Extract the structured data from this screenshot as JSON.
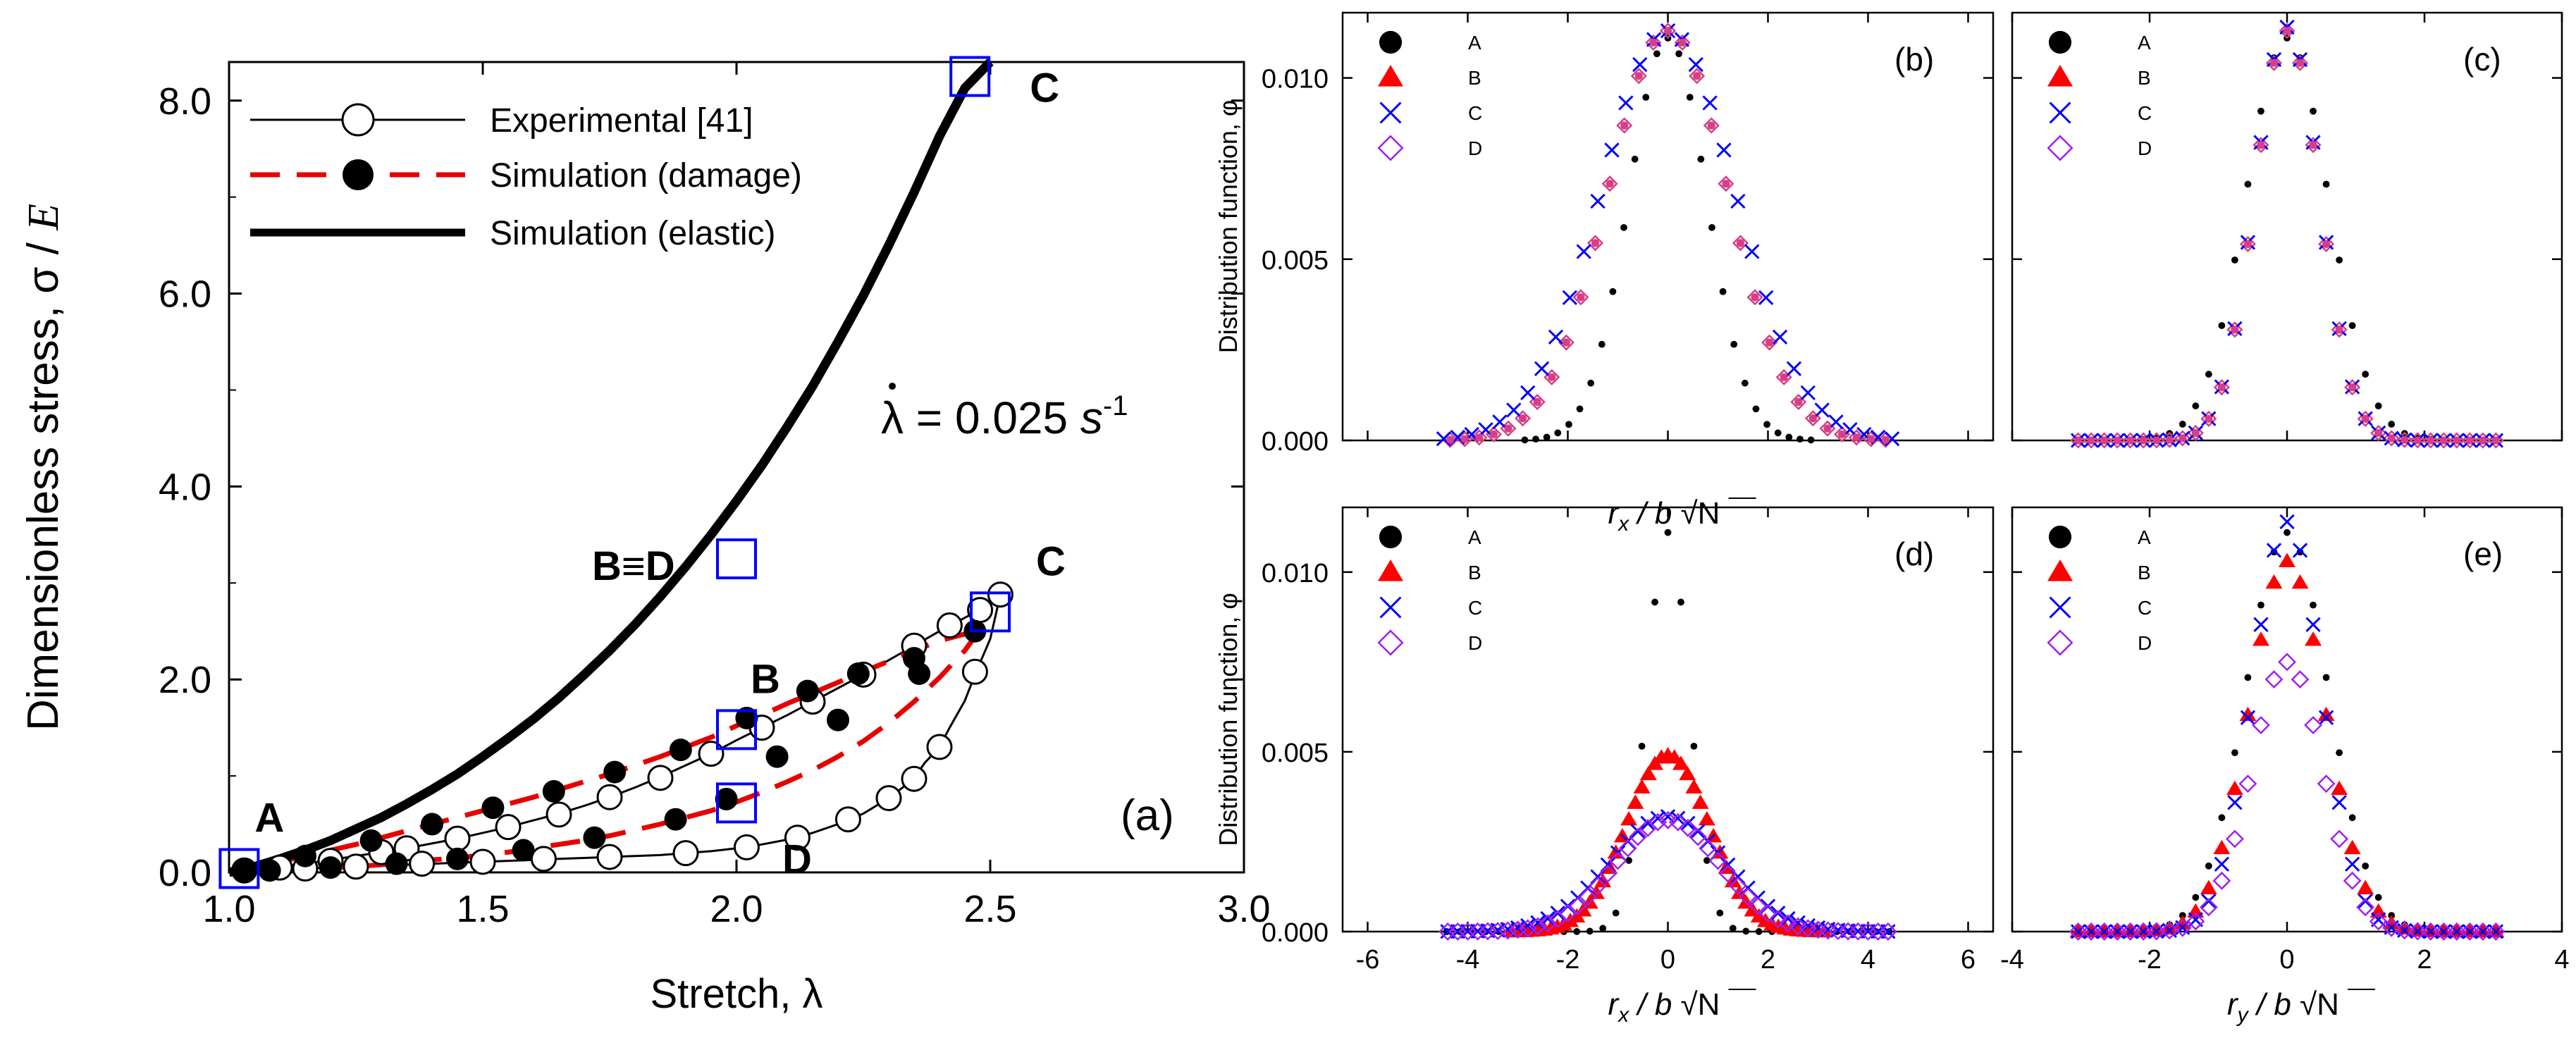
{
  "chart_data": [
    {
      "panel": "a",
      "type": "line",
      "title": "",
      "panel_label": "(a)",
      "xlabel": "Stretch, λ",
      "ylabel_prefix": "Dimensionless stress, σ / ",
      "ylabel_var": "E",
      "xlim": [
        1.0,
        3.0
      ],
      "ylim": [
        0.0,
        8.4
      ],
      "xticks": [
        1.0,
        1.5,
        2.0,
        2.5,
        3.0
      ],
      "xtick_labels": [
        "1.0",
        "1.5",
        "2.0",
        "2.5",
        "3.0"
      ],
      "yticks": [
        0,
        2,
        4,
        6,
        8
      ],
      "ytick_labels": [
        "0.0",
        "2.0",
        "4.0",
        "6.0",
        "8.0"
      ],
      "rate_annotation": {
        "lhs": "λ",
        "eq": " = 0.025 ",
        "unit": "s",
        "exp": "-1"
      },
      "legend_position": "top-left",
      "legend": [
        {
          "label": "Experimental [41]",
          "marker": "open-circle",
          "line": "thin-solid",
          "color": "#000000"
        },
        {
          "label": "Simulation (damage)",
          "marker": "filled-circle",
          "line": "dashed",
          "color": "#e60000"
        },
        {
          "label": "Simulation (elastic)",
          "marker": "none",
          "line": "thick-solid",
          "color": "#000000"
        }
      ],
      "series": [
        {
          "name": "Experimental [41] loading",
          "x": [
            1.02,
            1.06,
            1.1,
            1.15,
            1.2,
            1.25,
            1.3,
            1.35,
            1.4,
            1.45,
            1.5,
            1.55,
            1.6,
            1.65,
            1.7,
            1.75,
            1.8,
            1.85,
            1.9,
            1.95,
            2.0,
            2.05,
            2.1,
            2.15,
            2.2,
            2.25,
            2.3,
            2.35,
            2.4,
            2.45,
            2.5,
            2.52
          ],
          "y": [
            0.02,
            0.04,
            0.06,
            0.09,
            0.13,
            0.17,
            0.21,
            0.25,
            0.3,
            0.35,
            0.41,
            0.47,
            0.54,
            0.61,
            0.69,
            0.78,
            0.88,
            0.99,
            1.11,
            1.23,
            1.37,
            1.5,
            1.63,
            1.77,
            1.91,
            2.05,
            2.2,
            2.35,
            2.5,
            2.64,
            2.78,
            2.88
          ]
        },
        {
          "name": "Experimental [41] unloading",
          "x": [
            2.52,
            2.5,
            2.47,
            2.45,
            2.42,
            2.4,
            2.37,
            2.35,
            2.3,
            2.25,
            2.2,
            2.15,
            2.1,
            2.05,
            2.0,
            1.95,
            1.9,
            1.85,
            1.8,
            1.75,
            1.7,
            1.65,
            1.6,
            1.55,
            1.5,
            1.45,
            1.4,
            1.35,
            1.3,
            1.25,
            1.2,
            1.15,
            1.1,
            1.06,
            1.02
          ],
          "y": [
            2.88,
            2.42,
            2.05,
            1.78,
            1.5,
            1.3,
            1.13,
            0.97,
            0.77,
            0.61,
            0.5,
            0.41,
            0.34,
            0.29,
            0.25,
            0.22,
            0.2,
            0.18,
            0.17,
            0.16,
            0.15,
            0.14,
            0.13,
            0.12,
            0.11,
            0.1,
            0.09,
            0.08,
            0.07,
            0.06,
            0.05,
            0.04,
            0.03,
            0.02,
            0.02
          ]
        },
        {
          "name": "Experimental [41] markers",
          "x": [
            1.03,
            1.1,
            1.2,
            1.3,
            1.35,
            1.45,
            1.55,
            1.65,
            1.75,
            1.85,
            1.95,
            2.05,
            2.15,
            2.25,
            2.35,
            2.42,
            2.48,
            2.52,
            2.47,
            2.4,
            2.35,
            2.3,
            2.22,
            2.12,
            2.02,
            1.9,
            1.75,
            1.62,
            1.5,
            1.38,
            1.25,
            1.15
          ],
          "y": [
            0.02,
            0.05,
            0.12,
            0.21,
            0.25,
            0.35,
            0.47,
            0.6,
            0.78,
            0.98,
            1.23,
            1.5,
            1.77,
            2.05,
            2.35,
            2.56,
            2.72,
            2.88,
            2.08,
            1.3,
            0.97,
            0.77,
            0.55,
            0.36,
            0.26,
            0.2,
            0.16,
            0.14,
            0.11,
            0.09,
            0.06,
            0.04
          ]
        },
        {
          "name": "Simulation (damage) loading",
          "x": [
            1.02,
            1.06,
            1.1,
            1.15,
            1.2,
            1.25,
            1.3,
            1.35,
            1.4,
            1.45,
            1.5,
            1.55,
            1.6,
            1.65,
            1.7,
            1.75,
            1.8,
            1.85,
            1.9,
            1.95,
            2.0,
            2.05,
            2.1,
            2.15,
            2.2,
            2.25,
            2.3,
            2.35,
            2.4,
            2.45,
            2.48
          ],
          "y": [
            0.02,
            0.06,
            0.11,
            0.17,
            0.23,
            0.29,
            0.36,
            0.43,
            0.5,
            0.57,
            0.64,
            0.71,
            0.78,
            0.86,
            0.94,
            1.02,
            1.11,
            1.2,
            1.3,
            1.4,
            1.52,
            1.63,
            1.75,
            1.86,
            1.97,
            2.08,
            2.19,
            2.3,
            2.4,
            2.47,
            2.52
          ]
        },
        {
          "name": "Simulation (damage) unloading",
          "x": [
            2.48,
            2.45,
            2.4,
            2.35,
            2.3,
            2.25,
            2.2,
            2.15,
            2.1,
            2.05,
            2.0,
            1.95,
            1.9,
            1.85,
            1.8,
            1.75,
            1.7,
            1.65,
            1.6,
            1.55,
            1.5,
            1.45,
            1.4,
            1.35,
            1.3,
            1.25,
            1.2,
            1.15,
            1.1,
            1.06,
            1.02
          ],
          "y": [
            2.52,
            2.3,
            2.02,
            1.77,
            1.55,
            1.36,
            1.2,
            1.06,
            0.94,
            0.83,
            0.73,
            0.64,
            0.57,
            0.5,
            0.44,
            0.38,
            0.33,
            0.29,
            0.25,
            0.21,
            0.18,
            0.15,
            0.13,
            0.1,
            0.08,
            0.06,
            0.05,
            0.03,
            0.02,
            0.02,
            0.02
          ]
        },
        {
          "name": "Simulation (damage) markers",
          "x": [
            1.03,
            1.15,
            1.28,
            1.4,
            1.52,
            1.64,
            1.76,
            1.89,
            2.02,
            2.14,
            2.24,
            2.35,
            2.47,
            2.36,
            2.2,
            2.08,
            1.98,
            1.88,
            1.72,
            1.58,
            1.45,
            1.33,
            1.2,
            1.08
          ],
          "y": [
            0.02,
            0.17,
            0.33,
            0.5,
            0.67,
            0.84,
            1.04,
            1.27,
            1.6,
            1.88,
            2.06,
            2.22,
            2.5,
            2.06,
            1.58,
            1.2,
            0.76,
            0.55,
            0.36,
            0.23,
            0.14,
            0.09,
            0.05,
            0.02
          ]
        },
        {
          "name": "Simulation (elastic)",
          "x": [
            1.0,
            1.05,
            1.1,
            1.15,
            1.2,
            1.25,
            1.3,
            1.35,
            1.4,
            1.45,
            1.5,
            1.55,
            1.6,
            1.65,
            1.7,
            1.75,
            1.8,
            1.85,
            1.9,
            1.95,
            2.0,
            2.05,
            2.1,
            2.15,
            2.2,
            2.25,
            2.3,
            2.35,
            2.4,
            2.45,
            2.5
          ],
          "y": [
            0.0,
            0.06,
            0.14,
            0.23,
            0.33,
            0.45,
            0.57,
            0.71,
            0.86,
            1.02,
            1.2,
            1.39,
            1.59,
            1.81,
            2.05,
            2.3,
            2.57,
            2.86,
            3.17,
            3.5,
            3.85,
            4.22,
            4.62,
            5.04,
            5.5,
            5.98,
            6.5,
            7.05,
            7.63,
            8.13,
            8.4
          ]
        }
      ],
      "markers_points": [
        {
          "label": "A",
          "x": 1.02,
          "y": 0.04
        },
        {
          "label": "B",
          "x": 2.0,
          "y": 1.48
        },
        {
          "label": "B≡D",
          "x": 2.0,
          "y": 3.25
        },
        {
          "label": "C",
          "x": 2.5,
          "y": 2.7
        },
        {
          "label": "C",
          "x": 2.46,
          "y": 8.25
        },
        {
          "label": "D",
          "x": 2.0,
          "y": 0.72
        }
      ]
    },
    {
      "panel": "b",
      "type": "scatter",
      "panel_label": "(b)",
      "ylabel": "Distribution function, φ",
      "xlabel_var": "r_x / b √N",
      "xlim": [
        -6.5,
        6.5
      ],
      "ylim": [
        0.0,
        0.0118
      ],
      "yticks": [
        0.0,
        0.005,
        0.01
      ],
      "ytick_labels": [
        "0.000",
        "0.005",
        "0.010"
      ],
      "legend": [
        {
          "label": "A",
          "marker": "filled-circle",
          "color": "#000000"
        },
        {
          "label": "B",
          "marker": "triangle",
          "color": "#ff0000"
        },
        {
          "label": "C",
          "marker": "cross",
          "color": "#0000ff"
        },
        {
          "label": "D",
          "marker": "open-diamond",
          "color": "#a020f0"
        }
      ],
      "series": [
        {
          "name": "A",
          "sigma": 0.78,
          "peak": 0.0111,
          "xmax": 3.0,
          "step": 0.22
        },
        {
          "name": "B",
          "sigma": 1.2,
          "peak": 0.0113,
          "xmax": 4.5,
          "step": 0.29
        },
        {
          "name": "C",
          "sigma": 1.35,
          "peak": 0.0113,
          "xmax": 4.5,
          "step": 0.28
        },
        {
          "name": "D",
          "sigma": 1.2,
          "peak": 0.0113,
          "xmax": 4.5,
          "step": 0.29
        }
      ]
    },
    {
      "panel": "c",
      "type": "scatter",
      "panel_label": "(c)",
      "xlim": [
        -4,
        4
      ],
      "ylim": [
        0.0,
        0.0118
      ],
      "legend": [
        {
          "label": "A",
          "marker": "filled-circle",
          "color": "#000000"
        },
        {
          "label": "B",
          "marker": "triangle",
          "color": "#ff0000"
        },
        {
          "label": "C",
          "marker": "cross",
          "color": "#0000ff"
        },
        {
          "label": "D",
          "marker": "open-diamond",
          "color": "#a020f0"
        }
      ],
      "series": [
        {
          "name": "A",
          "sigma": 0.6,
          "peak": 0.0111,
          "xmax": 3.2,
          "step": 0.19
        },
        {
          "name": "B",
          "sigma": 0.47,
          "peak": 0.0113,
          "xmax": 3.2,
          "step": 0.19
        },
        {
          "name": "C",
          "sigma": 0.47,
          "peak": 0.0114,
          "xmax": 3.2,
          "step": 0.19
        },
        {
          "name": "D",
          "sigma": 0.47,
          "peak": 0.0113,
          "xmax": 3.2,
          "step": 0.19
        }
      ]
    },
    {
      "panel": "d",
      "type": "scatter",
      "panel_label": "(d)",
      "ylabel": "Distribution function, φ",
      "xlabel_var": "r_x / b √N",
      "xlim": [
        -6.5,
        6.5
      ],
      "ylim": [
        0.0,
        0.0118
      ],
      "xticks": [
        -6,
        -4,
        -2,
        0,
        2,
        4,
        6
      ],
      "xtick_labels": [
        "-6",
        "-4",
        "-2",
        "0",
        "2",
        "4",
        "6"
      ],
      "yticks": [
        0.0,
        0.005,
        0.01
      ],
      "ytick_labels": [
        "0.000",
        "0.005",
        "0.010"
      ],
      "legend": [
        {
          "label": "A",
          "marker": "filled-circle",
          "color": "#000000"
        },
        {
          "label": "B",
          "marker": "triangle",
          "color": "#ff0000"
        },
        {
          "label": "C",
          "marker": "cross",
          "color": "#0000ff"
        },
        {
          "label": "D",
          "marker": "open-diamond",
          "color": "#a020f0"
        }
      ],
      "series": [
        {
          "name": "A",
          "sigma": 0.42,
          "peak": 0.0111,
          "xmax": 4.5,
          "step": 0.26
        },
        {
          "name": "B",
          "sigma": 0.82,
          "peak": 0.0049,
          "xmax": 3.2,
          "step": 0.13
        },
        {
          "name": "C",
          "sigma": 1.15,
          "peak": 0.0032,
          "xmax": 4.5,
          "step": 0.2
        },
        {
          "name": "D",
          "sigma": 1.05,
          "peak": 0.0031,
          "xmax": 4.5,
          "step": 0.2
        }
      ]
    },
    {
      "panel": "e",
      "type": "scatter",
      "panel_label": "(e)",
      "xlabel_var": "r_y / b √N",
      "xlim": [
        -4,
        4
      ],
      "ylim": [
        0.0,
        0.0118
      ],
      "xticks": [
        -4,
        -2,
        0,
        2,
        4
      ],
      "xtick_labels": [
        "-4",
        "-2",
        "0",
        "2",
        "4"
      ],
      "legend": [
        {
          "label": "A",
          "marker": "filled-circle",
          "color": "#000000"
        },
        {
          "label": "B",
          "marker": "triangle",
          "color": "#ff0000"
        },
        {
          "label": "C",
          "marker": "cross",
          "color": "#0000ff"
        },
        {
          "label": "D",
          "marker": "open-diamond",
          "color": "#a020f0"
        }
      ],
      "series": [
        {
          "name": "A",
          "sigma": 0.6,
          "peak": 0.0111,
          "xmax": 3.2,
          "step": 0.19
        },
        {
          "name": "B",
          "sigma": 0.55,
          "peak": 0.0103,
          "xmax": 3.2,
          "step": 0.19
        },
        {
          "name": "C",
          "sigma": 0.5,
          "peak": 0.0114,
          "xmax": 3.2,
          "step": 0.19
        },
        {
          "name": "D",
          "sigma": 0.52,
          "peak": 0.0075,
          "xmax": 3.2,
          "step": 0.19
        }
      ]
    }
  ],
  "colors": {
    "axis": "#000000",
    "damage": "#e60000",
    "marker_box": "#0000ff",
    "A": "#000000",
    "B": "#ff0000",
    "C": "#0000ff",
    "D": "#a020f0",
    "B_overlap": "#d63f86"
  }
}
